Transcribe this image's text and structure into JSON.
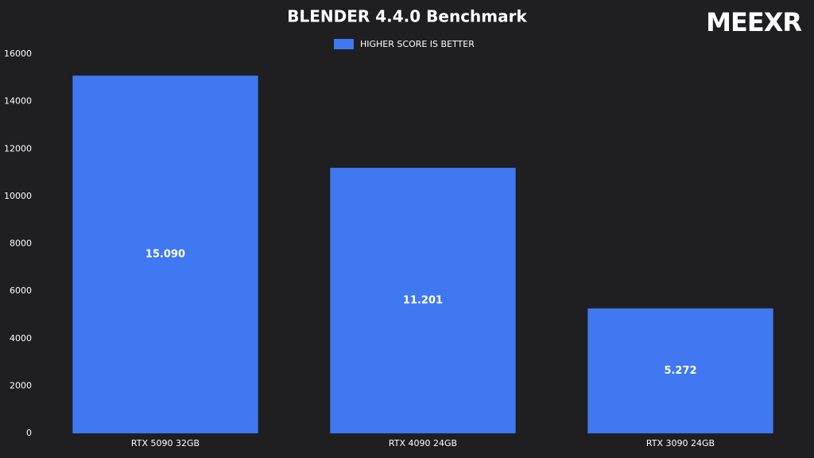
{
  "chart_data": {
    "type": "bar",
    "title": "BLENDER 4.4.0 Benchmark",
    "watermark": "MEEXR",
    "categories": [
      "RTX 5090 32GB",
      "RTX 4090 24GB",
      "RTX 3090 24GB"
    ],
    "series": [
      {
        "name": "HIGHER SCORE IS BETTER",
        "color": "#3f78f0",
        "values": [
          15090,
          11201,
          5272
        ],
        "value_labels": [
          "15.090",
          "11.201",
          "5.272"
        ]
      }
    ],
    "ylim": [
      0,
      16000
    ],
    "yticks": [
      0,
      2000,
      4000,
      6000,
      8000,
      10000,
      12000,
      14000,
      16000
    ],
    "grid": false,
    "legend": "top"
  }
}
